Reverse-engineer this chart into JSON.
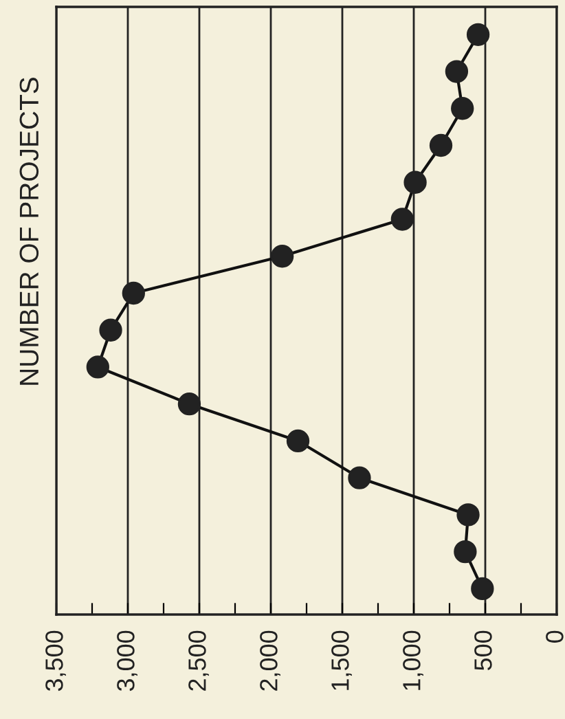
{
  "chart_data": {
    "type": "line",
    "orientation": "horizontal",
    "ylabel": "NUMBER OF PROJECTS",
    "categories": [
      null,
      null,
      null,
      null,
      null,
      null,
      null,
      null,
      null,
      null,
      null,
      null,
      null,
      null,
      null,
      null
    ],
    "series": [
      {
        "color": "#222222",
        "values": [
          550,
          700,
          660,
          810,
          990,
          1080,
          1920,
          2960,
          3120,
          3210,
          2570,
          1810,
          1380,
          620,
          640,
          520
        ]
      }
    ],
    "xlim": [
      3500,
      0
    ],
    "xticks": [
      {
        "value": 3500,
        "label": "3,500"
      },
      {
        "value": 3250,
        "label": null
      },
      {
        "value": 3000,
        "label": "3,000"
      },
      {
        "value": 2750,
        "label": null
      },
      {
        "value": 2500,
        "label": "2,500"
      },
      {
        "value": 2250,
        "label": null
      },
      {
        "value": 2000,
        "label": "2,000"
      },
      {
        "value": 1750,
        "label": null
      },
      {
        "value": 1500,
        "label": "1,500"
      },
      {
        "value": 1250,
        "label": null
      },
      {
        "value": 1000,
        "label": "1,000"
      },
      {
        "value": 750,
        "label": null
      },
      {
        "value": 500,
        "label": "500"
      },
      {
        "value": 250,
        "label": null
      },
      0
    ],
    "grid": "x",
    "marker": "circle",
    "line_style": "solid",
    "tick_labels": "x"
  }
}
